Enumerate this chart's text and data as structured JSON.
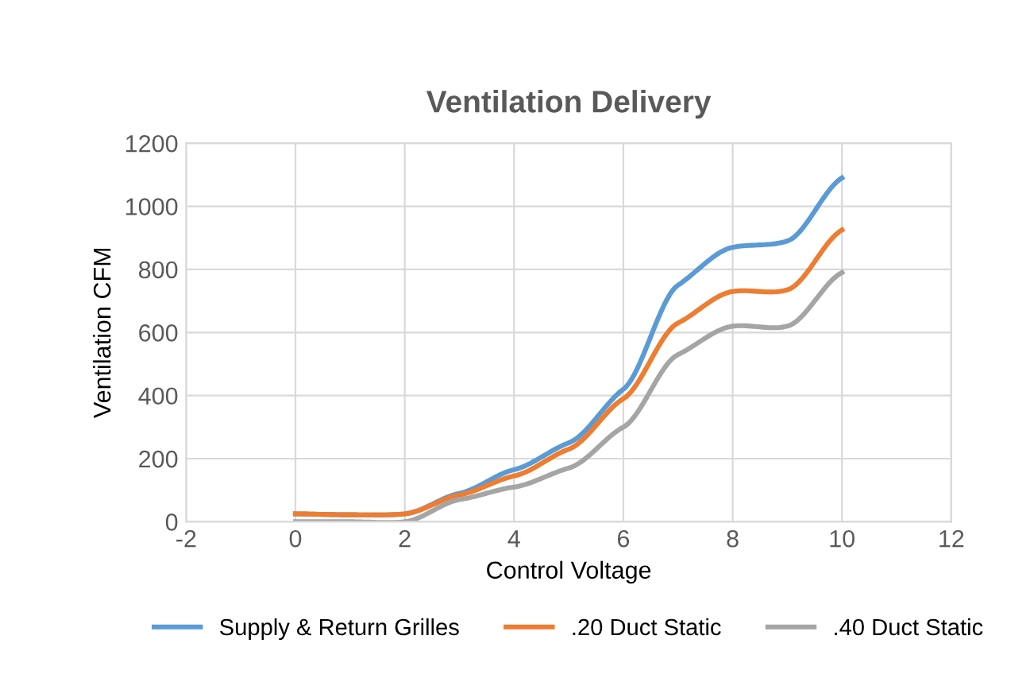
{
  "chart_data": {
    "type": "line",
    "title": "Ventilation Delivery",
    "xlabel": "Control Voltage",
    "ylabel": "Ventilation CFM",
    "x": [
      0,
      1,
      2,
      3,
      4,
      5,
      6,
      7,
      8,
      9,
      10
    ],
    "series": [
      {
        "name": "Supply & Return Grilles",
        "color": "#5b9bd5",
        "values": [
          25,
          22,
          25,
          90,
          165,
          250,
          420,
          750,
          870,
          890,
          1090
        ]
      },
      {
        "name": ".20 Duct Static",
        "color": "#ed7d31",
        "values": [
          25,
          22,
          25,
          85,
          145,
          230,
          390,
          630,
          730,
          735,
          925
        ]
      },
      {
        "name": ".40 Duct Static",
        "color": "#a5a5a5",
        "values": [
          0,
          0,
          0,
          70,
          110,
          170,
          300,
          530,
          620,
          620,
          790
        ]
      }
    ],
    "xlim": [
      -2,
      12
    ],
    "xticks": [
      -2,
      0,
      2,
      4,
      6,
      8,
      10,
      12
    ],
    "ylim": [
      0,
      1200
    ],
    "yticks": [
      0,
      200,
      400,
      600,
      800,
      1000,
      1200
    ],
    "grid": true,
    "legend": "bottom",
    "marker": "none",
    "line_style": "solid"
  }
}
